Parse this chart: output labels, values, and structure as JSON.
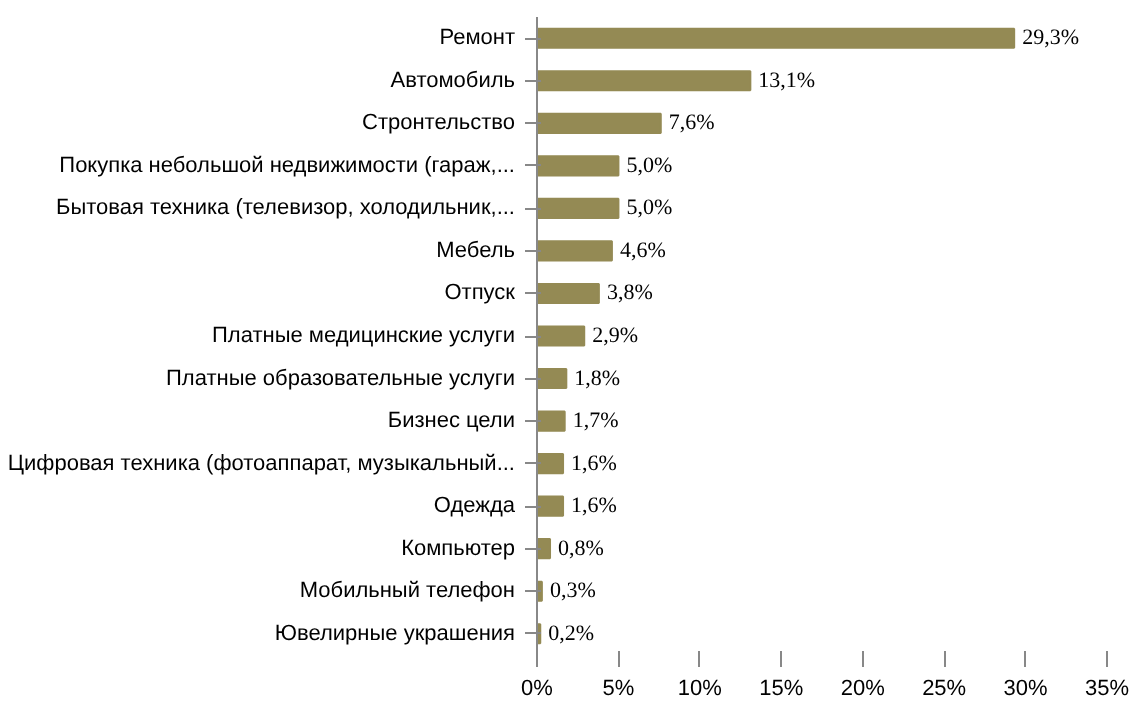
{
  "chart_data": {
    "type": "bar",
    "orientation": "horizontal",
    "categories": [
      "Ремонт",
      "Автомобиль",
      "Стронтельство",
      "Покупка небольшой недвижимости (гараж,...",
      "Бытовая техника (телевизор, холодильник,...",
      "Мебель",
      "Отпуск",
      "Платные медицинские услуги",
      "Платные образовательные услуги",
      "Бизнес цели",
      "Цифровая техника (фотоаппарат, музыкальный...",
      "Одежда",
      "Компьютер",
      "Мобильный телефон",
      "Ювелирные украшения"
    ],
    "values": [
      29.3,
      13.1,
      7.6,
      5.0,
      5.0,
      4.6,
      3.8,
      2.9,
      1.8,
      1.7,
      1.6,
      1.6,
      0.8,
      0.3,
      0.2
    ],
    "value_labels": [
      "29,3%",
      "13,1%",
      "7,6%",
      "5,0%",
      "5,0%",
      "4,6%",
      "3,8%",
      "2,9%",
      "1,8%",
      "1,7%",
      "1,6%",
      "1,6%",
      "0,8%",
      "0,3%",
      "0,2%"
    ],
    "color": "#948a54",
    "xlim": [
      0,
      35
    ],
    "xticks": [
      {
        "value": 0,
        "label": "0%"
      },
      {
        "value": 5,
        "label": "5%"
      },
      {
        "value": 10,
        "label": "10%"
      },
      {
        "value": 15,
        "label": "15%"
      },
      {
        "value": 20,
        "label": "20%"
      },
      {
        "value": 25,
        "label": "25%"
      },
      {
        "value": 30,
        "label": "30%"
      },
      {
        "value": 35,
        "label": "35%"
      }
    ],
    "grid": false
  }
}
